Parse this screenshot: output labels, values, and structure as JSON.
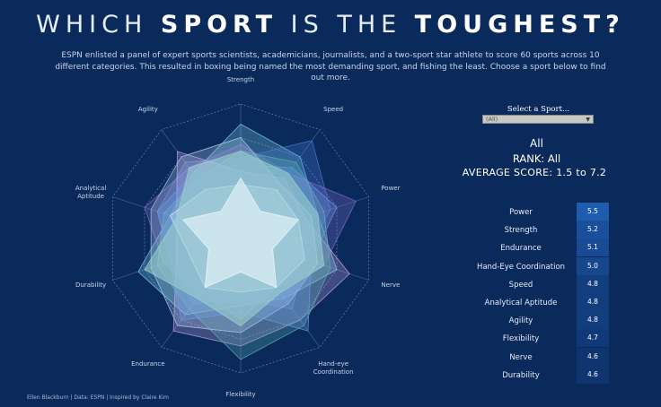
{
  "header": {
    "title_pre": "WHICH ",
    "title_bold1": "SPORT",
    "title_mid": " IS THE ",
    "title_bold2": "TOUGHEST?",
    "subtitle": "ESPN enlisted a panel of expert sports scientists, academicians, journalists, and a two-sport star athlete to score 60 sports across 10 different categories. This resulted in  boxing being named  the most demanding sport, and fishing the least. Choose a sport below to find out more."
  },
  "selector": {
    "label": "Select a Sport...",
    "value": "(All)"
  },
  "selection": {
    "sport": "All",
    "rank": "RANK: All",
    "average": "AVERAGE SCORE: 1.5 to 7.2"
  },
  "colors": {
    "background": "#0b2a5c",
    "score_high": "#1f5cb0",
    "score_low": "#0f3570"
  },
  "chart_data": {
    "type": "radar",
    "axes": [
      "Strength",
      "Speed",
      "Power",
      "Nerve",
      "Hand-eye Coordination",
      "Flexibility",
      "Endurance",
      "Durability",
      "Analytical Aptitude",
      "Agility"
    ],
    "series": [
      {
        "values": [
          8.5,
          7.5,
          6.0,
          7.5,
          5.5,
          5.0,
          7.0,
          8.0,
          5.5,
          6.0
        ],
        "color": "#7fd8e8"
      },
      {
        "values": [
          6.0,
          9.0,
          7.0,
          5.0,
          6.5,
          4.5,
          6.0,
          5.5,
          6.5,
          7.0
        ],
        "color": "#4a7fd6"
      },
      {
        "values": [
          7.0,
          6.0,
          9.0,
          6.5,
          4.5,
          6.0,
          5.0,
          6.0,
          7.5,
          6.5
        ],
        "color": "#8a6fd0"
      },
      {
        "values": [
          5.0,
          5.5,
          5.0,
          8.5,
          7.5,
          8.0,
          8.5,
          5.0,
          5.0,
          8.0
        ],
        "color": "#c9a7e6"
      },
      {
        "values": [
          6.5,
          7.0,
          6.5,
          7.0,
          8.0,
          9.0,
          6.5,
          6.5,
          6.0,
          5.5
        ],
        "color": "#5fb8b0"
      },
      {
        "values": [
          7.5,
          5.0,
          5.5,
          6.0,
          6.0,
          7.0,
          8.0,
          7.0,
          7.0,
          7.5
        ],
        "color": "#b4d0f2"
      },
      {
        "values": [
          5.5,
          6.5,
          7.5,
          5.5,
          8.5,
          5.5,
          7.5,
          5.5,
          6.5,
          6.0
        ],
        "color": "#6aa0e8"
      },
      {
        "values": [
          4.0,
          4.5,
          4.5,
          5.0,
          4.5,
          4.0,
          4.5,
          4.0,
          5.5,
          4.5
        ],
        "color": "#e8f4ff"
      },
      {
        "values": [
          6.5,
          6.0,
          6.0,
          6.5,
          5.0,
          6.5,
          5.5,
          7.5,
          5.0,
          6.5
        ],
        "color": "#9fd6d0"
      },
      {
        "values": [
          4.5,
          2.5,
          4.5,
          2.5,
          4.5,
          2.5,
          4.5,
          2.5,
          4.5,
          2.5
        ],
        "color": "#f2fbff"
      }
    ],
    "table": {
      "categories": [
        "Power",
        "Strength",
        "Endurance",
        "Hand-Eye Coordination",
        "Speed",
        "Analytical Aptitude",
        "Agility",
        "Flexibility",
        "Nerve",
        "Durability"
      ],
      "values": [
        5.5,
        5.2,
        5.1,
        5.0,
        4.8,
        4.8,
        4.8,
        4.7,
        4.6,
        4.6
      ]
    }
  },
  "footer": "Ellen Blackburn | Data: ESPN | Inspired by Claire Kim"
}
